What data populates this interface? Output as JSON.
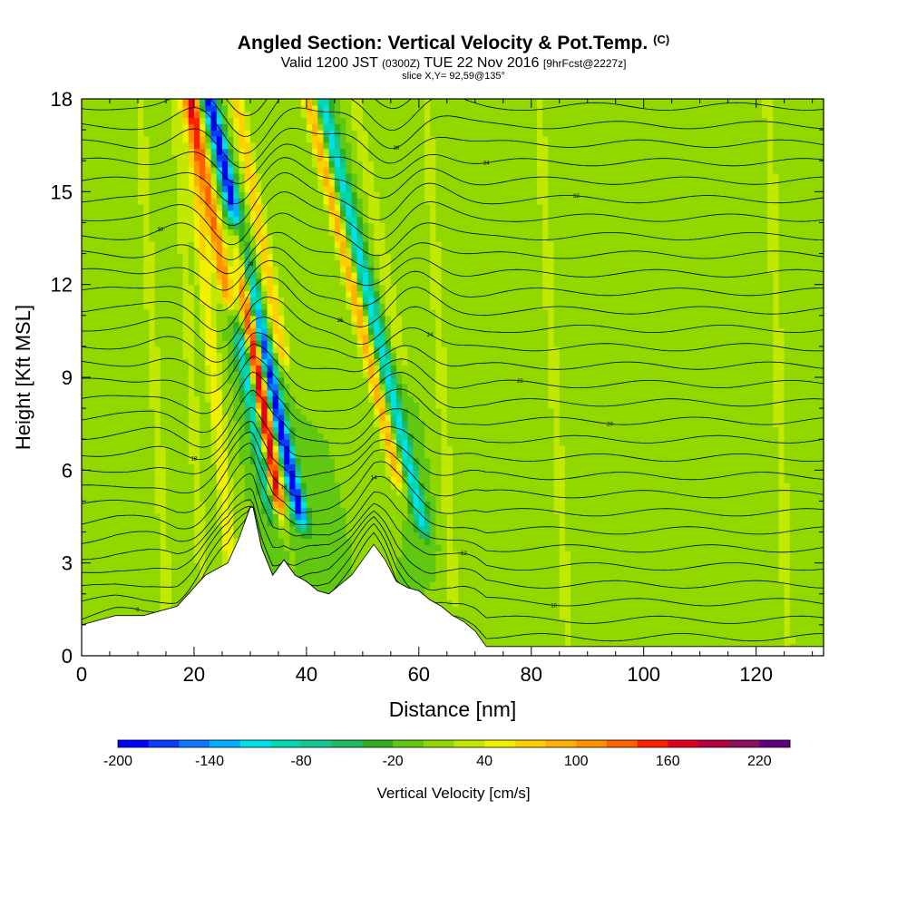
{
  "title": {
    "main": "Angled Section: Vertical Velocity & Pot.Temp.",
    "units_flag": "(C)",
    "valid_prefix": "Valid 1200 JST",
    "valid_utc": "(0300Z)",
    "valid_date": "TUE 22 Nov 2016",
    "forecast": "[9hrFcst@2227z]",
    "slice": "slice X,Y= 92,59@135°"
  },
  "chart_data": {
    "type": "heatmap",
    "xlabel": "Distance [nm]",
    "ylabel": "Height [Kft MSL]",
    "xlim": [
      0,
      132
    ],
    "ylim": [
      0,
      18
    ],
    "x_ticks": [
      "0",
      "20",
      "40",
      "60",
      "80",
      "100",
      "120"
    ],
    "y_ticks": [
      "0",
      "3",
      "6",
      "9",
      "12",
      "15",
      "18"
    ],
    "grid": false,
    "colorbar": {
      "label": "Vertical Velocity [cm/s]",
      "min": -200,
      "step": 20,
      "tick_labels": [
        "-200",
        "-140",
        "-80",
        "-20",
        "40",
        "100",
        "160",
        "220"
      ],
      "colors": [
        "#0000ff",
        "#0a3cff",
        "#0a78ff",
        "#00b0ff",
        "#00e0e8",
        "#00d8b0",
        "#10c890",
        "#20b860",
        "#30b020",
        "#60c810",
        "#90d800",
        "#c0e800",
        "#f0f000",
        "#ffd000",
        "#ffb000",
        "#ff9000",
        "#ff6000",
        "#ff2000",
        "#e00020",
        "#b80040",
        "#901060",
        "#600080"
      ]
    },
    "background_velocity": 0,
    "velocity_features": [
      {
        "x": 33.5,
        "y_range": [
          4.8,
          18
        ],
        "lean": -1.2,
        "value": -200
      },
      {
        "x": 31.5,
        "y_range": [
          5.2,
          13.5
        ],
        "lean": -0.8,
        "value": 200
      },
      {
        "x": 29.5,
        "y_range": [
          5.0,
          10
        ],
        "lean": -1.0,
        "value": -120
      },
      {
        "x": 28.5,
        "y_range": [
          12,
          18
        ],
        "lean": -1.0,
        "value": 120
      },
      {
        "x": 36.5,
        "y_range": [
          10,
          18
        ],
        "lean": -1.0,
        "value": 80
      },
      {
        "x": 54.5,
        "y_range": [
          4.5,
          18
        ],
        "lean": -1.3,
        "value": -110
      },
      {
        "x": 52,
        "y_range": [
          6,
          18
        ],
        "lean": -1.3,
        "value": 90
      },
      {
        "x": 57.5,
        "y_range": [
          10,
          18
        ],
        "lean": -1.0,
        "value": 40
      },
      {
        "x": 23.5,
        "y_range": [
          0.5,
          18
        ],
        "lean": -0.5,
        "value": 60
      },
      {
        "x": 13,
        "y_range": [
          1.5,
          18
        ],
        "lean": -0.3,
        "value": 30
      },
      {
        "x": 19.5,
        "y_range": [
          1.5,
          18
        ],
        "lean": -0.3,
        "value": 30
      },
      {
        "x": 64,
        "y_range": [
          2,
          18
        ],
        "lean": -0.3,
        "value": 30
      },
      {
        "x": 74,
        "y_range": [
          1,
          18
        ],
        "lean": -0.3,
        "value": 20
      },
      {
        "x": 84,
        "y_range": [
          0.5,
          18
        ],
        "lean": -0.3,
        "value": 30
      },
      {
        "x": 94,
        "y_range": [
          0.5,
          18
        ],
        "lean": -0.3,
        "value": 20
      },
      {
        "x": 107,
        "y_range": [
          0.5,
          18
        ],
        "lean": -0.3,
        "value": 20
      },
      {
        "x": 124,
        "y_range": [
          0.5,
          18
        ],
        "lean": -0.2,
        "value": 30
      }
    ],
    "terrain": {
      "x": [
        0,
        6,
        11,
        17,
        20,
        22,
        24,
        26,
        28,
        30,
        30.5,
        32,
        34,
        36,
        38,
        40,
        42,
        44,
        46,
        48,
        50,
        52,
        54,
        56,
        58,
        60,
        62,
        64,
        66,
        68,
        70,
        72,
        80,
        90,
        100,
        110,
        120,
        132
      ],
      "y": [
        1.0,
        1.3,
        1.3,
        1.6,
        2.2,
        2.6,
        2.8,
        3.0,
        3.8,
        4.8,
        4.8,
        3.5,
        2.6,
        3.1,
        2.6,
        2.4,
        2.1,
        2.0,
        2.3,
        2.6,
        3.1,
        3.6,
        3.1,
        2.4,
        2.2,
        2.1,
        1.8,
        1.6,
        1.3,
        1.1,
        0.8,
        0.3,
        0.3,
        0.3,
        0.3,
        0.3,
        0.3,
        0.3
      ]
    },
    "isentropes": {
      "base_temps_c": [
        10,
        12,
        14,
        16,
        18,
        20,
        22,
        24,
        26,
        28,
        30,
        32,
        34,
        36,
        38,
        40,
        42,
        44,
        46,
        48,
        50,
        52,
        54,
        56,
        58,
        60,
        62,
        64,
        66,
        68,
        70
      ],
      "label_values": [
        "8",
        "10",
        "12",
        "14",
        "16",
        "18",
        "20",
        "22",
        "24",
        "26",
        "28",
        "30",
        "32",
        "34",
        "36",
        "38",
        "40"
      ]
    }
  }
}
